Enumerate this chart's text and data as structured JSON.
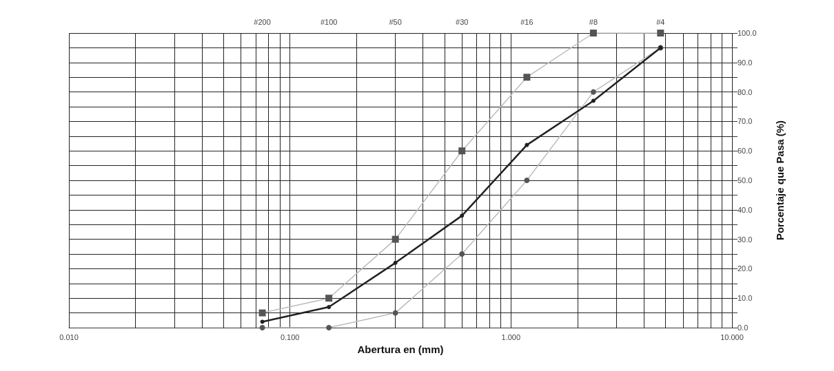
{
  "chart_data": {
    "type": "line",
    "xlabel": "Abertura en (mm)",
    "ylabel": "Porcentaje que Pasa (%)",
    "x": [
      0.075,
      0.15,
      0.3,
      0.6,
      1.18,
      2.36,
      4.75
    ],
    "series": [
      {
        "color": "#bbbbbb",
        "marker": "square",
        "values": [
          5,
          10,
          30,
          60,
          85,
          100,
          100
        ]
      },
      {
        "color": "#bbbbbb",
        "marker": "circle",
        "values": [
          0,
          0,
          5,
          25,
          50,
          80,
          95
        ]
      },
      {
        "color": "#222222",
        "marker": "circle",
        "values": [
          2,
          7,
          22,
          38,
          62,
          77,
          95
        ]
      }
    ],
    "log": "x",
    "xlim": [
      0.01,
      10
    ],
    "xticks": [
      {
        "value": 0.01,
        "label": "0.010"
      },
      {
        "value": 0.02,
        "label": null
      },
      {
        "value": 0.03,
        "label": null
      },
      {
        "value": 0.04,
        "label": null
      },
      {
        "value": 0.05,
        "label": null
      },
      {
        "value": 0.06,
        "label": null
      },
      {
        "value": 0.07,
        "label": null
      },
      {
        "value": 0.08,
        "label": null
      },
      {
        "value": 0.09,
        "label": null
      },
      {
        "value": 0.1,
        "label": "0.100"
      },
      {
        "value": 0.2,
        "label": null
      },
      {
        "value": 0.3,
        "label": null
      },
      {
        "value": 0.4,
        "label": null
      },
      {
        "value": 0.5,
        "label": null
      },
      {
        "value": 0.6,
        "label": null
      },
      {
        "value": 0.7,
        "label": null
      },
      {
        "value": 0.8,
        "label": null
      },
      {
        "value": 0.9,
        "label": null
      },
      {
        "value": 1,
        "label": "1.000"
      },
      {
        "value": 2,
        "label": null
      },
      {
        "value": 3,
        "label": null
      },
      {
        "value": 4,
        "label": null
      },
      {
        "value": 5,
        "label": null
      },
      {
        "value": 6,
        "label": null
      },
      {
        "value": 7,
        "label": null
      },
      {
        "value": 8,
        "label": null
      },
      {
        "value": 9,
        "label": null
      },
      {
        "value": 10,
        "label": "10.000"
      }
    ],
    "annotations": [
      "#200",
      "#100",
      "#50",
      "#30",
      "#16",
      "#8",
      "#4"
    ],
    "ylim": [
      0,
      100
    ],
    "yticks": [
      {
        "value": 0,
        "label": "0.0"
      },
      {
        "value": 5,
        "label": null
      },
      {
        "value": 10,
        "label": "10.0"
      },
      {
        "value": 15,
        "label": null
      },
      {
        "value": 20,
        "label": "20.0"
      },
      {
        "value": 25,
        "label": null
      },
      {
        "value": 30,
        "label": "30.0"
      },
      {
        "value": 35,
        "label": null
      },
      {
        "value": 40,
        "label": "40.0"
      },
      {
        "value": 45,
        "label": null
      },
      {
        "value": 50,
        "label": "50.0"
      },
      {
        "value": 55,
        "label": null
      },
      {
        "value": 60,
        "label": "60.0"
      },
      {
        "value": 65,
        "label": null
      },
      {
        "value": 70,
        "label": "70.0"
      },
      {
        "value": 75,
        "label": null
      },
      {
        "value": 80,
        "label": "80.0"
      },
      {
        "value": 85,
        "label": null
      },
      {
        "value": 90,
        "label": "90.0"
      },
      {
        "value": 95,
        "label": null
      },
      {
        "value": 100,
        "label": "100.0"
      }
    ],
    "grid": true
  }
}
